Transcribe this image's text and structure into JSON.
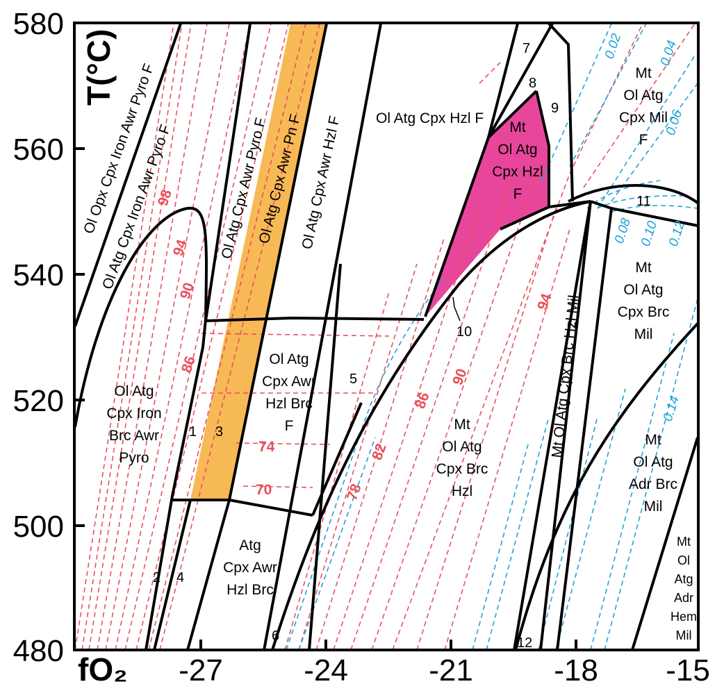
{
  "axes": {
    "y_title": "T(°C)",
    "x_title": "fO₂",
    "y_ticks": [
      "580",
      "560",
      "540",
      "520",
      "500",
      "480"
    ],
    "x_ticks": [
      "-27",
      "-24",
      "-21",
      "-18",
      "-15"
    ]
  },
  "colors": {
    "orange_field": "#f7b955",
    "magenta_field": "#e8469b",
    "red_isopleth": "#e8505b",
    "blue_isopleth": "#1ba3d8"
  },
  "fields": {
    "ol_opx_cpx_iron_awr_pyro_f": "Ol Opx Cpx Iron Awr Pyro F",
    "ol_atg_cpx_iron_awr_pyro_f": "Ol Atg Cpx Iron Awr Pyro F",
    "ol_atg_cpx_awr_pyro_f": "Ol Atg Cpx Awr Pyro F",
    "ol_atg_cpx_awr_pn_f": "Ol Atg Cpx Awr Pn F",
    "ol_atg_cpx_awr_hzl_f": "Ol Atg Cpx Awr Hzl F",
    "ol_atg_cpx_hzl_f": "Ol Atg Cpx Hzl F",
    "mt_ol_atg_cpx_hzl_f": [
      "Mt",
      "Ol Atg",
      "Cpx Hzl",
      "F"
    ],
    "mt_ol_atg_cpx_mil_f": [
      "Mt",
      "Ol Atg",
      "Cpx Mil",
      "F"
    ],
    "ol_atg_cpx_iron_brc_awr_pyro": [
      "Ol Atg",
      "Cpx Iron",
      "Brc Awr",
      "Pyro"
    ],
    "ol_atg_cpx_awr_hzl_brc_f": [
      "Ol Atg",
      "Cpx Awr",
      "Hzl Brc",
      "F"
    ],
    "mt_ol_atg_cpx_brc_hzl": [
      "Mt",
      "Ol Atg",
      "Cpx Brc",
      "Hzl"
    ],
    "mt_ol_atg_cpx_brc_hzl_mil": "Mt Ol Atg Cpx Brc Hzl Mil",
    "mt_ol_atg_cpx_brc_mil": [
      "Mt",
      "Ol Atg",
      "Cpx Brc",
      "Mil"
    ],
    "mt_ol_atg_adr_brc_mil": [
      "Mt",
      "Ol Atg",
      "Adr Brc",
      "Mil"
    ],
    "atg_cpx_awr_hzl_brc": [
      "Atg",
      "Cpx Awr",
      "Hzl Brc"
    ],
    "mt_ol_atg_adr_hem_mil": [
      "Mt",
      "Ol",
      "Atg",
      "Adr",
      "Hem",
      "Mil"
    ]
  },
  "numbers": [
    "1",
    "2",
    "3",
    "4",
    "5",
    "6",
    "7",
    "8",
    "9",
    "10",
    "11",
    "12"
  ],
  "red_labels": [
    "98",
    "94",
    "90",
    "86",
    "74",
    "70",
    "78",
    "82",
    "86",
    "90",
    "94"
  ],
  "blue_labels": [
    "0.02",
    "0.04",
    "0.06",
    "0.08",
    "0.10",
    "0.12",
    "0.14"
  ]
}
